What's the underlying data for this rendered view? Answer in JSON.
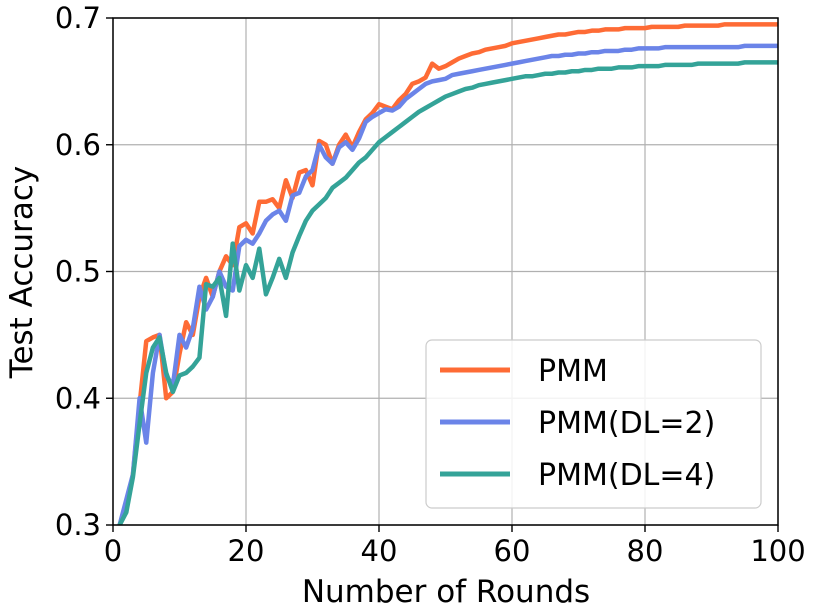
{
  "chart_data": {
    "type": "line",
    "title": "",
    "xlabel": "Number of Rounds",
    "ylabel": "Test Accuracy",
    "xlim": [
      0,
      100
    ],
    "ylim": [
      0.3,
      0.7
    ],
    "xticks": [
      0,
      20,
      40,
      60,
      80,
      100
    ],
    "xtick_labels": [
      "0",
      "20",
      "40",
      "60",
      "80",
      "100"
    ],
    "yticks": [
      0.3,
      0.4,
      0.5,
      0.6,
      0.7
    ],
    "ytick_labels": [
      "0.3",
      "0.4",
      "0.5",
      "0.6",
      "0.7"
    ],
    "grid": true,
    "legend_position": "lower-right",
    "x": [
      1,
      2,
      3,
      4,
      5,
      6,
      7,
      8,
      9,
      10,
      11,
      12,
      13,
      14,
      15,
      16,
      17,
      18,
      19,
      20,
      21,
      22,
      23,
      24,
      25,
      26,
      27,
      28,
      29,
      30,
      31,
      32,
      33,
      34,
      35,
      36,
      37,
      38,
      39,
      40,
      41,
      42,
      43,
      44,
      45,
      46,
      47,
      48,
      49,
      50,
      51,
      52,
      53,
      54,
      55,
      56,
      57,
      58,
      59,
      60,
      61,
      62,
      63,
      64,
      65,
      66,
      67,
      68,
      69,
      70,
      71,
      72,
      73,
      74,
      75,
      76,
      77,
      78,
      79,
      80,
      81,
      82,
      83,
      84,
      85,
      86,
      87,
      88,
      89,
      90,
      91,
      92,
      93,
      94,
      95,
      96,
      97,
      98,
      99,
      100
    ],
    "series": [
      {
        "name": "PMM",
        "color": "#fe6b35",
        "values": [
          0.3,
          0.315,
          0.34,
          0.395,
          0.445,
          0.448,
          0.45,
          0.4,
          0.405,
          0.435,
          0.46,
          0.45,
          0.48,
          0.495,
          0.48,
          0.5,
          0.512,
          0.505,
          0.535,
          0.538,
          0.53,
          0.555,
          0.555,
          0.557,
          0.55,
          0.572,
          0.558,
          0.578,
          0.58,
          0.568,
          0.603,
          0.6,
          0.585,
          0.6,
          0.608,
          0.598,
          0.61,
          0.62,
          0.625,
          0.632,
          0.63,
          0.628,
          0.635,
          0.64,
          0.648,
          0.65,
          0.653,
          0.664,
          0.66,
          0.662,
          0.665,
          0.668,
          0.67,
          0.672,
          0.673,
          0.675,
          0.676,
          0.677,
          0.678,
          0.68,
          0.681,
          0.682,
          0.683,
          0.684,
          0.685,
          0.686,
          0.687,
          0.687,
          0.688,
          0.689,
          0.689,
          0.69,
          0.69,
          0.691,
          0.691,
          0.691,
          0.692,
          0.692,
          0.692,
          0.692,
          0.693,
          0.693,
          0.693,
          0.693,
          0.693,
          0.694,
          0.694,
          0.694,
          0.694,
          0.694,
          0.694,
          0.695,
          0.695,
          0.695,
          0.695,
          0.695,
          0.695,
          0.695,
          0.695,
          0.695
        ]
      },
      {
        "name": "PMM(DL=2)",
        "color": "#6b84e8",
        "values": [
          0.3,
          0.32,
          0.34,
          0.4,
          0.365,
          0.42,
          0.45,
          0.418,
          0.41,
          0.45,
          0.44,
          0.455,
          0.488,
          0.47,
          0.48,
          0.5,
          0.488,
          0.485,
          0.52,
          0.525,
          0.522,
          0.53,
          0.54,
          0.545,
          0.548,
          0.54,
          0.56,
          0.562,
          0.575,
          0.58,
          0.6,
          0.59,
          0.585,
          0.598,
          0.602,
          0.596,
          0.605,
          0.618,
          0.622,
          0.625,
          0.628,
          0.627,
          0.63,
          0.636,
          0.64,
          0.644,
          0.648,
          0.65,
          0.651,
          0.652,
          0.655,
          0.656,
          0.657,
          0.658,
          0.659,
          0.66,
          0.661,
          0.662,
          0.663,
          0.664,
          0.665,
          0.666,
          0.667,
          0.668,
          0.669,
          0.67,
          0.67,
          0.671,
          0.671,
          0.672,
          0.672,
          0.673,
          0.673,
          0.674,
          0.674,
          0.674,
          0.675,
          0.675,
          0.676,
          0.676,
          0.676,
          0.676,
          0.677,
          0.677,
          0.677,
          0.677,
          0.677,
          0.677,
          0.677,
          0.677,
          0.677,
          0.677,
          0.677,
          0.677,
          0.678,
          0.678,
          0.678,
          0.678,
          0.678,
          0.678
        ]
      },
      {
        "name": "PMM(DL=4)",
        "color": "#34a398",
        "values": [
          0.3,
          0.31,
          0.338,
          0.38,
          0.42,
          0.44,
          0.448,
          0.42,
          0.405,
          0.418,
          0.42,
          0.425,
          0.432,
          0.49,
          0.488,
          0.495,
          0.465,
          0.522,
          0.485,
          0.505,
          0.495,
          0.518,
          0.482,
          0.495,
          0.51,
          0.495,
          0.515,
          0.528,
          0.54,
          0.548,
          0.553,
          0.558,
          0.566,
          0.57,
          0.574,
          0.58,
          0.586,
          0.59,
          0.596,
          0.602,
          0.606,
          0.61,
          0.614,
          0.618,
          0.622,
          0.626,
          0.629,
          0.632,
          0.635,
          0.638,
          0.64,
          0.642,
          0.644,
          0.645,
          0.647,
          0.648,
          0.649,
          0.65,
          0.651,
          0.652,
          0.653,
          0.654,
          0.654,
          0.655,
          0.656,
          0.656,
          0.657,
          0.657,
          0.658,
          0.658,
          0.659,
          0.659,
          0.66,
          0.66,
          0.66,
          0.661,
          0.661,
          0.661,
          0.662,
          0.662,
          0.662,
          0.662,
          0.663,
          0.663,
          0.663,
          0.663,
          0.663,
          0.664,
          0.664,
          0.664,
          0.664,
          0.664,
          0.664,
          0.664,
          0.665,
          0.665,
          0.665,
          0.665,
          0.665,
          0.665
        ]
      }
    ]
  }
}
